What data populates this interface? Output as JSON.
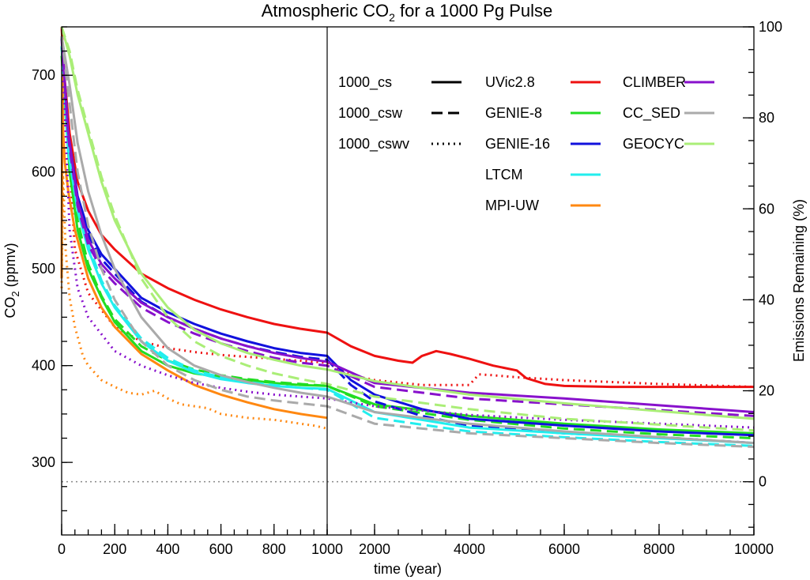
{
  "chart_data": {
    "type": "line",
    "title": "Atmospheric CO",
    "title_subscript": "2",
    "title_suffix": " for a 1000 Pg Pulse",
    "xlabel": "time (year)",
    "ylabel": {
      "main": "CO",
      "sub": "2",
      "unit": " (ppmv)"
    },
    "y2label": "Emissions Remaining (%)",
    "xaxis": {
      "panels": [
        {
          "range": [
            0,
            1000
          ],
          "ticks": [
            0,
            200,
            400,
            600,
            800,
            1000
          ],
          "tick_labels": [
            "0",
            "200",
            "400",
            "600",
            "800",
            "1000"
          ]
        },
        {
          "range": [
            1000,
            10000
          ],
          "ticks": [
            2000,
            4000,
            6000,
            8000,
            10000
          ],
          "tick_labels": [
            "2000",
            "4000",
            "6000",
            "8000",
            "10000"
          ]
        }
      ]
    },
    "ylim": [
      225,
      750
    ],
    "yticks": [
      300,
      400,
      500,
      600,
      700
    ],
    "ytick_labels": [
      "300",
      "400",
      "500",
      "600",
      "700"
    ],
    "y2ticks": [
      0,
      20,
      40,
      60,
      80,
      100
    ],
    "y2tick_labels": [
      "0",
      "20",
      "40",
      "60",
      "80",
      "100"
    ],
    "baseline_co2": 280,
    "divider_x": 1000,
    "grid": false,
    "legend_styles": [
      {
        "label": "1000_cs",
        "dash": "solid"
      },
      {
        "label": "1000_csw",
        "dash": "dashed"
      },
      {
        "label": "1000_cswv",
        "dash": "dotted"
      }
    ],
    "legend_models": [
      {
        "label": "UVic2.8",
        "color": "#ee1111"
      },
      {
        "label": "GENIE-8",
        "color": "#22dd22"
      },
      {
        "label": "GENIE-16",
        "color": "#1111dd"
      },
      {
        "label": "LTCM",
        "color": "#22eeee"
      },
      {
        "label": "MPI-UW",
        "color": "#ff8811"
      },
      {
        "label": "CLIMBER",
        "color": "#8811cc"
      },
      {
        "label": "CC_SED",
        "color": "#aaaaaa"
      },
      {
        "label": "GEOCYC",
        "color": "#aaee77"
      }
    ],
    "series": [
      {
        "model": "UVic2.8",
        "run": "1000_cs",
        "color": "#ee1111",
        "x": [
          0,
          10,
          30,
          60,
          100,
          150,
          200,
          300,
          400,
          500,
          600,
          700,
          800,
          900,
          1000,
          1500,
          2000,
          2500,
          2800,
          3000,
          3300,
          3600,
          4000,
          4500,
          5000,
          5200,
          5600,
          6000,
          7000,
          8000,
          9000,
          10000
        ],
        "y": [
          750,
          700,
          640,
          590,
          560,
          535,
          520,
          495,
          480,
          468,
          458,
          450,
          443,
          438,
          434,
          420,
          410,
          405,
          403,
          410,
          415,
          412,
          407,
          400,
          395,
          387,
          381,
          379,
          378,
          378,
          378,
          378
        ]
      },
      {
        "model": "UVic2.8",
        "run": "1000_cswv",
        "color": "#ee1111",
        "x": [
          0,
          50,
          100,
          200,
          300,
          400,
          500,
          600,
          700,
          800,
          900,
          1000,
          1500,
          2000,
          3000,
          4000,
          4200,
          4500,
          5000,
          6000,
          8000,
          10000
        ],
        "y": [
          740,
          520,
          475,
          440,
          425,
          418,
          414,
          411,
          409,
          407,
          405,
          403,
          390,
          385,
          380,
          380,
          391,
          390,
          388,
          385,
          381,
          378
        ]
      },
      {
        "model": "GENIE-8",
        "run": "1000_cs",
        "color": "#22dd22",
        "x": [
          0,
          30,
          60,
          100,
          150,
          200,
          300,
          400,
          500,
          600,
          700,
          800,
          900,
          1000,
          2000,
          4000,
          6000,
          8000,
          10000
        ],
        "y": [
          720,
          600,
          540,
          500,
          470,
          445,
          415,
          400,
          392,
          388,
          385,
          382,
          380,
          379,
          360,
          348,
          340,
          334,
          330
        ]
      },
      {
        "model": "GENIE-8",
        "run": "1000_csw",
        "color": "#22dd22",
        "x": [
          0,
          30,
          60,
          100,
          150,
          200,
          300,
          400,
          500,
          600,
          700,
          800,
          900,
          1000,
          2000,
          4000,
          6000,
          8000,
          10000
        ],
        "y": [
          730,
          610,
          550,
          505,
          472,
          448,
          420,
          405,
          396,
          390,
          386,
          383,
          381,
          379,
          358,
          344,
          335,
          329,
          325
        ]
      },
      {
        "model": "GENIE-16",
        "run": "1000_cs",
        "color": "#1111dd",
        "x": [
          0,
          25,
          60,
          100,
          150,
          200,
          300,
          400,
          500,
          600,
          700,
          800,
          900,
          1000,
          1500,
          2000,
          3000,
          4000,
          6000,
          8000,
          10000
        ],
        "y": [
          740,
          640,
          575,
          540,
          515,
          500,
          470,
          455,
          443,
          433,
          425,
          418,
          413,
          410,
          385,
          370,
          355,
          345,
          338,
          332,
          328
        ]
      },
      {
        "model": "GENIE-16",
        "run": "1000_csw",
        "color": "#1111dd",
        "x": [
          0,
          25,
          60,
          100,
          150,
          200,
          300,
          400,
          500,
          600,
          700,
          800,
          900,
          1000,
          1500,
          2000,
          3000,
          4000,
          6000,
          8000,
          10000
        ],
        "y": [
          740,
          635,
          570,
          535,
          510,
          495,
          466,
          450,
          438,
          428,
          420,
          414,
          409,
          406,
          380,
          363,
          348,
          338,
          330,
          326,
          320
        ]
      },
      {
        "model": "LTCM",
        "run": "1000_cs",
        "color": "#22eeee",
        "x": [
          0,
          25,
          60,
          100,
          150,
          200,
          300,
          400,
          500,
          600,
          700,
          800,
          900,
          1000,
          2000,
          4000,
          6000,
          8000,
          10000
        ],
        "y": [
          730,
          620,
          560,
          520,
          485,
          460,
          425,
          405,
          393,
          386,
          382,
          379,
          377,
          376,
          352,
          336,
          330,
          325,
          320
        ]
      },
      {
        "model": "LTCM",
        "run": "1000_csw",
        "color": "#22eeee",
        "x": [
          0,
          25,
          60,
          100,
          150,
          200,
          300,
          400,
          500,
          600,
          700,
          800,
          900,
          1000,
          2000,
          4000,
          6000,
          8000,
          10000
        ],
        "y": [
          730,
          625,
          565,
          525,
          488,
          462,
          428,
          408,
          395,
          388,
          383,
          380,
          377,
          375,
          346,
          332,
          326,
          321,
          317
        ]
      },
      {
        "model": "MPI-UW",
        "run": "1000_cs",
        "color": "#ff8811",
        "x": [
          0,
          3,
          6,
          12,
          25,
          50,
          100,
          150,
          200,
          300,
          400,
          500,
          600,
          700,
          800,
          900,
          1000
        ],
        "y": [
          490,
          700,
          640,
          610,
          580,
          540,
          490,
          460,
          440,
          412,
          395,
          380,
          370,
          362,
          355,
          350,
          346
        ]
      },
      {
        "model": "MPI-UW",
        "run": "1000_cswv",
        "color": "#ff8811",
        "x": [
          0,
          5,
          15,
          30,
          50,
          80,
          100,
          150,
          200,
          250,
          300,
          350,
          400,
          450,
          500,
          550,
          600,
          650,
          700,
          750,
          800,
          850,
          900,
          950,
          1000
        ],
        "y": [
          480,
          600,
          520,
          470,
          440,
          410,
          400,
          385,
          378,
          372,
          370,
          374,
          366,
          360,
          358,
          356,
          350,
          348,
          346,
          345,
          344,
          342,
          340,
          338,
          335
        ]
      },
      {
        "model": "CLIMBER",
        "run": "1000_cs",
        "color": "#8811cc",
        "x": [
          0,
          25,
          60,
          100,
          150,
          200,
          300,
          400,
          500,
          600,
          700,
          800,
          900,
          1000,
          2000,
          4000,
          6000,
          8000,
          10000
        ],
        "y": [
          740,
          640,
          570,
          530,
          505,
          490,
          465,
          450,
          438,
          428,
          420,
          413,
          408,
          404,
          382,
          372,
          366,
          359,
          352
        ]
      },
      {
        "model": "CLIMBER",
        "run": "1000_csw",
        "color": "#8811cc",
        "x": [
          0,
          25,
          60,
          100,
          150,
          200,
          300,
          400,
          500,
          600,
          700,
          800,
          900,
          1000,
          2000,
          4000,
          6000,
          8000,
          10000
        ],
        "y": [
          740,
          635,
          565,
          525,
          500,
          485,
          460,
          445,
          433,
          423,
          415,
          408,
          403,
          400,
          378,
          366,
          360,
          354,
          348
        ]
      },
      {
        "model": "CLIMBER",
        "run": "1000_cswv",
        "color": "#8811cc",
        "x": [
          0,
          30,
          60,
          100,
          200,
          300,
          400,
          500,
          600,
          700,
          800,
          900,
          1000,
          2000,
          4000,
          6000,
          8000,
          10000
        ],
        "y": [
          740,
          540,
          480,
          450,
          415,
          400,
          390,
          382,
          377,
          373,
          370,
          368,
          366,
          358,
          349,
          344,
          340,
          336
        ]
      },
      {
        "model": "CC_SED",
        "run": "1000_cs",
        "color": "#aaaaaa",
        "x": [
          0,
          30,
          60,
          100,
          150,
          200,
          300,
          400,
          500,
          600,
          700,
          800,
          900,
          1000,
          2000,
          4000,
          6000,
          8000,
          10000
        ],
        "y": [
          740,
          690,
          630,
          580,
          535,
          500,
          450,
          418,
          400,
          390,
          383,
          377,
          372,
          368,
          352,
          340,
          332,
          326,
          320
        ]
      },
      {
        "model": "CC_SED",
        "run": "1000_csw",
        "color": "#aaaaaa",
        "x": [
          0,
          30,
          60,
          100,
          150,
          200,
          300,
          400,
          500,
          600,
          700,
          800,
          900,
          1000,
          2000,
          4000,
          6000,
          8000,
          10000
        ],
        "y": [
          740,
          670,
          600,
          545,
          500,
          468,
          425,
          400,
          385,
          375,
          368,
          364,
          361,
          358,
          340,
          330,
          325,
          320,
          316
        ]
      },
      {
        "model": "GEOCYC",
        "run": "1000_cs",
        "color": "#aaee77",
        "x": [
          0,
          30,
          60,
          100,
          150,
          200,
          300,
          400,
          500,
          600,
          700,
          800,
          900,
          1000,
          2000,
          4000,
          6000,
          8000,
          10000
        ],
        "y": [
          750,
          720,
          680,
          640,
          590,
          550,
          495,
          460,
          437,
          423,
          413,
          406,
          400,
          396,
          384,
          370,
          361,
          353,
          345
        ]
      },
      {
        "model": "GEOCYC",
        "run": "1000_csw",
        "color": "#aaee77",
        "x": [
          0,
          30,
          60,
          100,
          150,
          200,
          300,
          400,
          500,
          600,
          700,
          800,
          900,
          1000,
          2000,
          4000,
          6000,
          8000,
          10000
        ],
        "y": [
          750,
          725,
          685,
          645,
          595,
          555,
          490,
          450,
          425,
          410,
          400,
          392,
          386,
          381,
          368,
          355,
          345,
          339,
          333
        ]
      }
    ]
  }
}
